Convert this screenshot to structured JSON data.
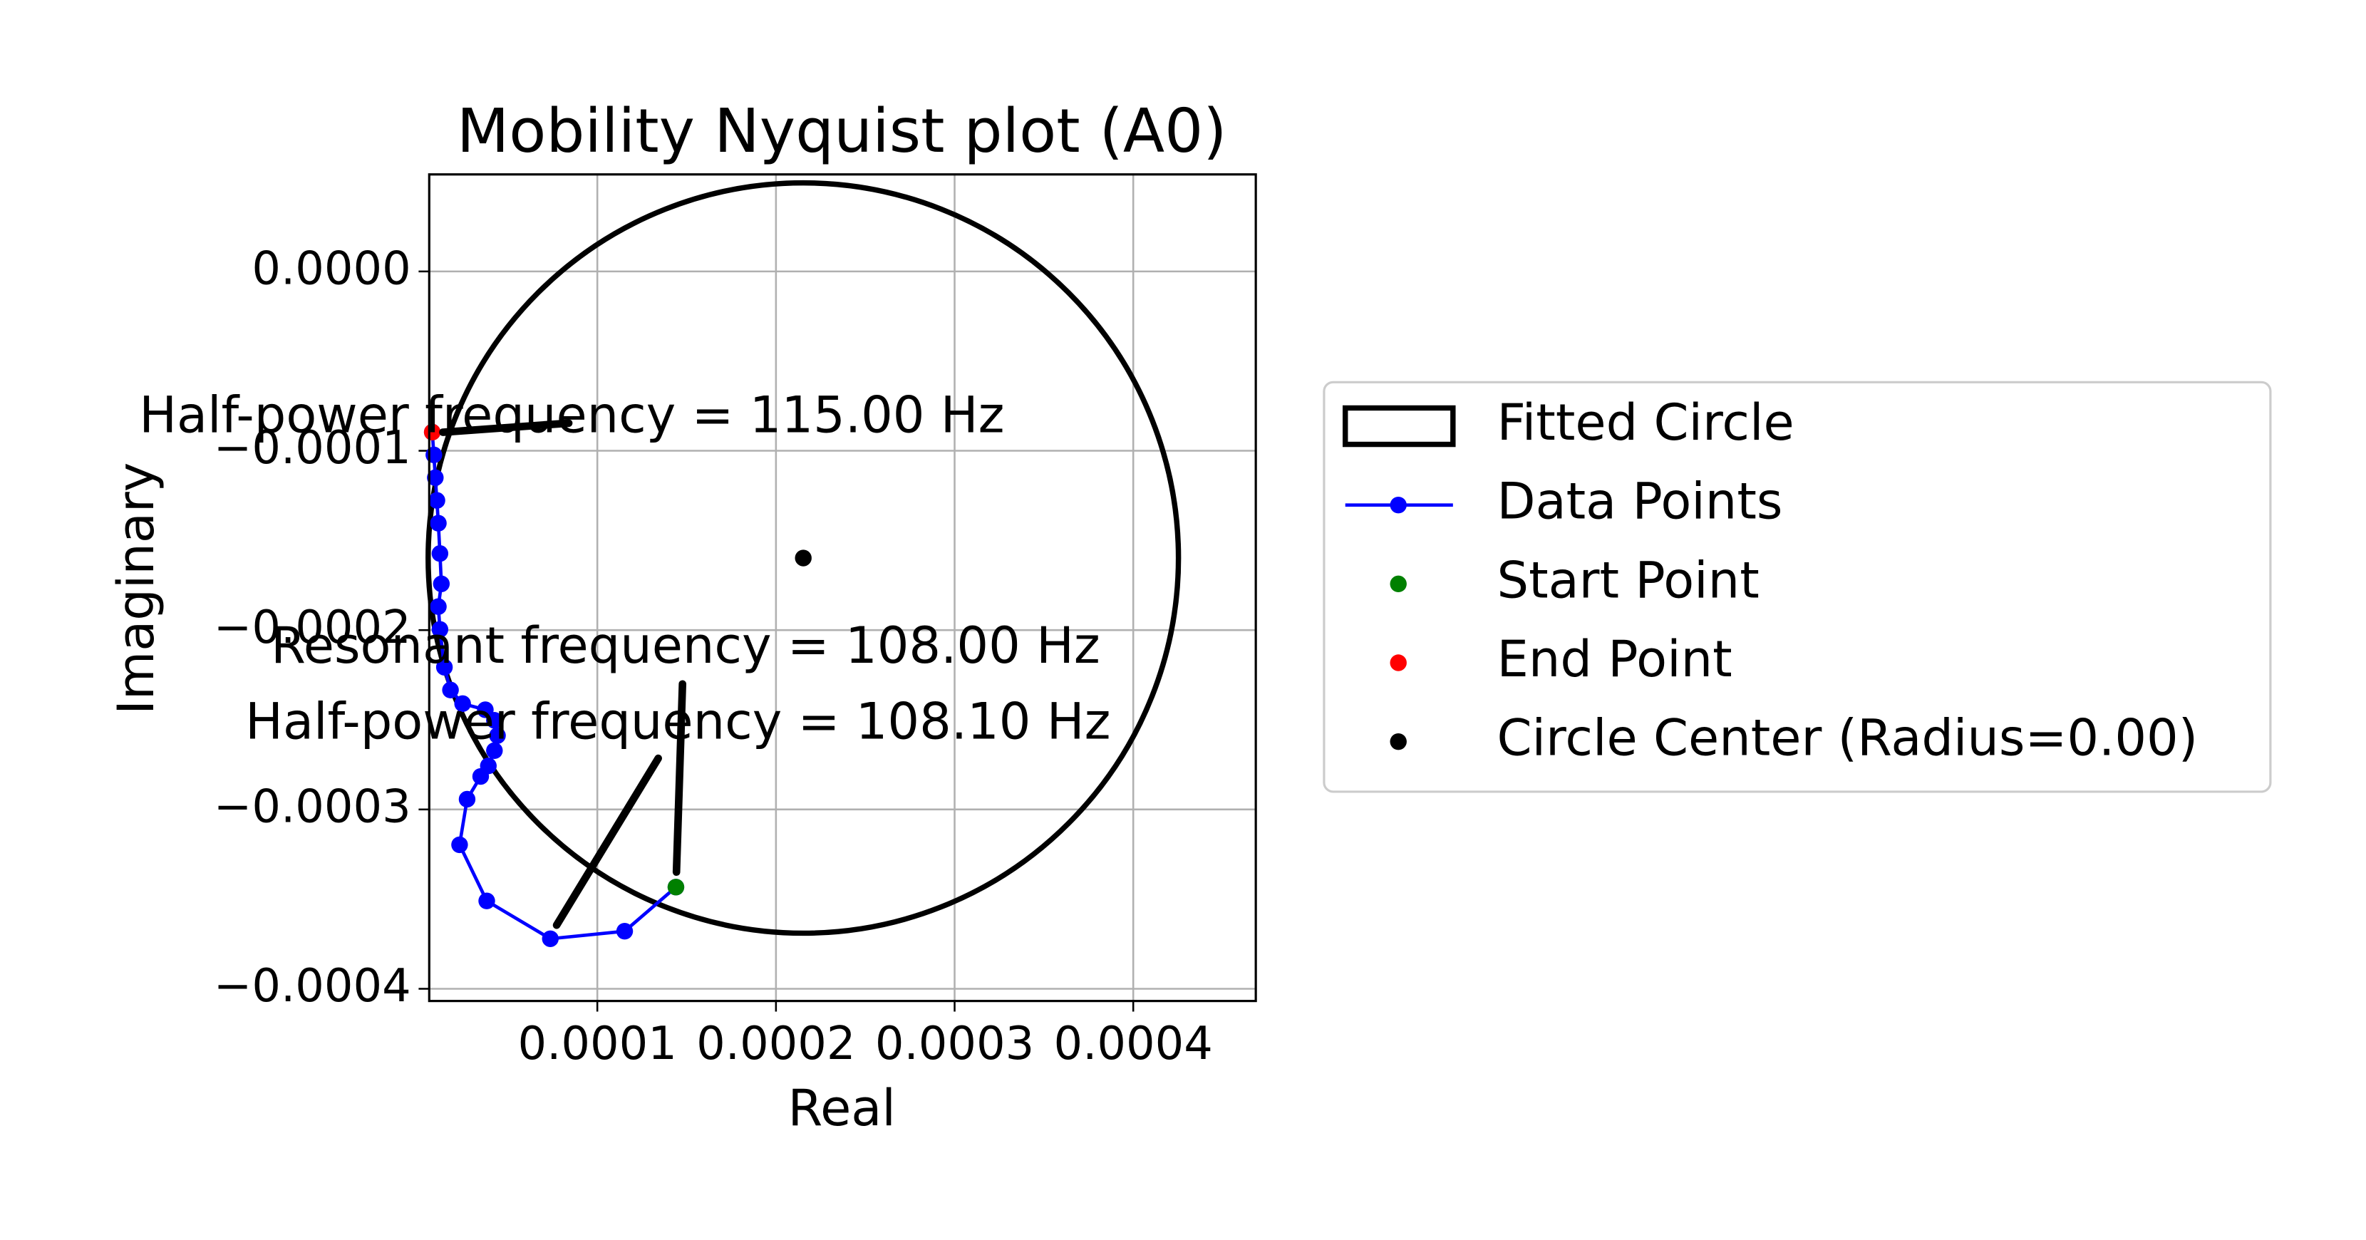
{
  "chart_data": {
    "type": "nyquist",
    "title": "Mobility Nyquist plot (A0)",
    "x_label": "Real",
    "y_label": "Imaginary",
    "xlim": [
      5.9e-06,
      0.0004686
    ],
    "ylim": [
      -0.0004068,
      5.41e-05
    ],
    "xticks": [
      0.0001,
      0.0002,
      0.0003,
      0.0004
    ],
    "yticks": [
      {
        "value": 0,
        "label": "0.0000"
      },
      {
        "value": -0.0001,
        "label": "−0.0001"
      },
      {
        "value": -0.0002,
        "label": "−0.0002"
      },
      {
        "value": -0.0003,
        "label": "−0.0003"
      },
      {
        "value": -0.0004,
        "label": "−0.0004"
      }
    ],
    "grid": true,
    "legend": "outside right",
    "circle": {
      "name": "Fitted Circle",
      "color": "#000000",
      "center": [
        0.0002153,
        -0.0001598
      ],
      "radius": 0.00021
    },
    "series": [
      {
        "name": "Data Points",
        "color": "#0000ff",
        "x": [
          0.000144,
          0.0001153,
          7.37e-05,
          3.81e-05,
          2.29e-05,
          2.71e-05,
          3.47e-05,
          3.9e-05,
          4.24e-05,
          4.41e-05,
          4.24e-05,
          3.73e-05,
          2.46e-05,
          1.78e-05,
          1.44e-05,
          1.19e-05,
          1.1e-05,
          1.27e-05,
          1.19e-05,
          1.1e-05,
          1.02e-05,
          9.3e-06,
          8.5e-06,
          7.6e-06
        ],
        "values": [
          -0.0003433,
          -0.0003679,
          -0.0003721,
          -0.000351,
          -0.0003197,
          -0.0002943,
          -0.0002816,
          -0.0002757,
          -0.0002672,
          -0.0002588,
          -0.0002503,
          -0.0002444,
          -0.000241,
          -0.0002334,
          -0.0002207,
          -0.0001996,
          -0.0001869,
          -0.0001742,
          -0.0001573,
          -0.0001404,
          -0.0001277,
          -0.000115,
          -0.0001023,
          -8.96e-05
        ]
      },
      {
        "name": "Start Point",
        "color": "#008000",
        "x": [
          0.000144
        ],
        "values": [
          -0.0003433
        ]
      },
      {
        "name": "End Point",
        "color": "#ff0000",
        "x": [
          7.6e-06
        ],
        "values": [
          -8.96e-05
        ]
      },
      {
        "name": "Circle Center (Radius=0.00)",
        "color": "#000000",
        "x": [
          0.0002153
        ],
        "values": [
          -0.0001598
        ]
      }
    ],
    "annotations": [
      "Half-power frequency = 115.00 Hz",
      "Resonant frequency = 108.00 Hz",
      "Half-power frequency = 108.10 Hz"
    ]
  }
}
